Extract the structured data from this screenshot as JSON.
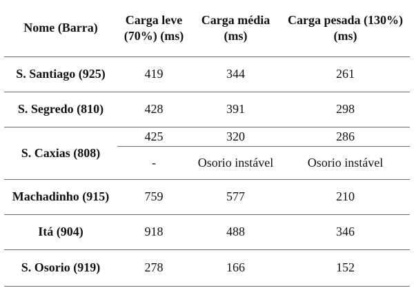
{
  "header": {
    "name": "Nome (Barra)",
    "light": "Carga leve (70%) (ms)",
    "medium": "Carga média (ms)",
    "heavy": "Carga pesada (130%) (ms)"
  },
  "rows": {
    "santiago": {
      "name": "S. Santiago (925)",
      "light": "419",
      "medium": "344",
      "heavy": "261"
    },
    "segredo": {
      "name": "S. Segredo (810)",
      "light": "428",
      "medium": "391",
      "heavy": "298"
    },
    "caxias": {
      "name": "S. Caxias (808)",
      "a": {
        "light": "425",
        "medium": "320",
        "heavy": "286"
      },
      "b": {
        "light": "-",
        "medium": "Osorio instável",
        "heavy": "Osorio instável"
      }
    },
    "machadinho": {
      "name": "Machadinho (915)",
      "light": "759",
      "medium": "577",
      "heavy": "210"
    },
    "ita": {
      "name": "Itá (904)",
      "light": "918",
      "medium": "488",
      "heavy": "346"
    },
    "osorio": {
      "name": "S. Osorio (919)",
      "light": "278",
      "medium": "166",
      "heavy": "152"
    }
  }
}
